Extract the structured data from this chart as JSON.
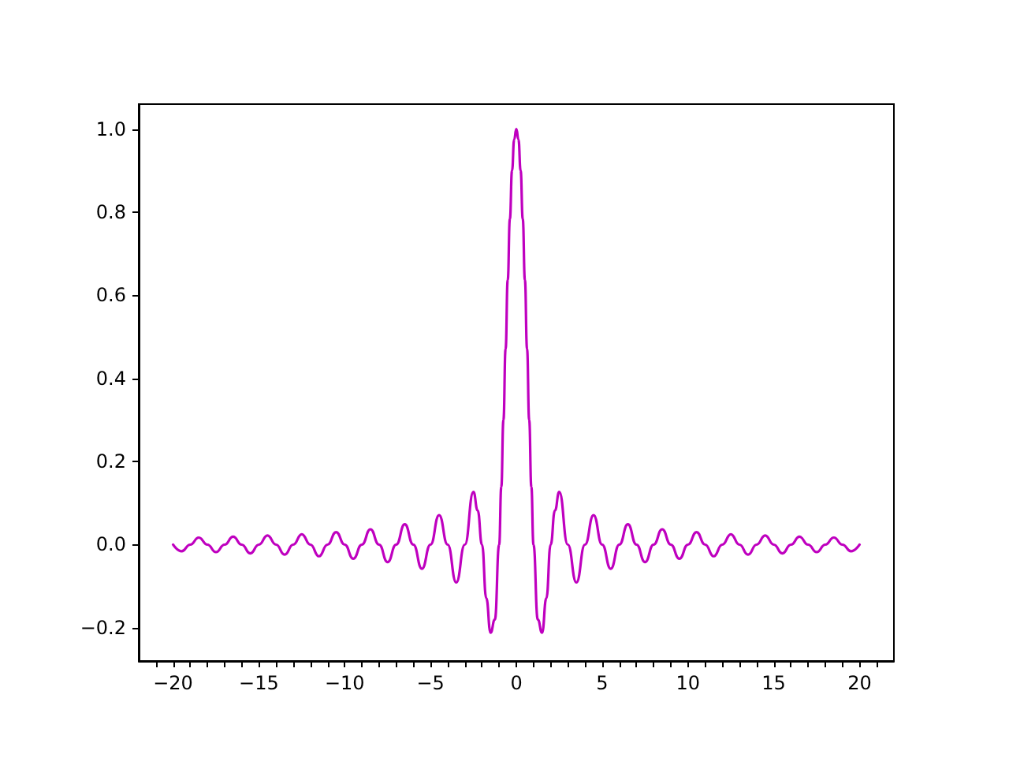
{
  "chart_data": {
    "type": "line",
    "x": [
      -20,
      -19.5,
      -19,
      -18.5,
      -18,
      -17.5,
      -17,
      -16.5,
      -16,
      -15.5,
      -15,
      -14.5,
      -14,
      -13.5,
      -13,
      -12.5,
      -12,
      -11.5,
      -11,
      -10.5,
      -10,
      -9.5,
      -9,
      -8.5,
      -8,
      -7.5,
      -7,
      -6.5,
      -6,
      -5.5,
      -5,
      -4.5,
      -4,
      -3.5,
      -3,
      -2.5,
      -2.25,
      -2,
      -1.75,
      -1.5,
      -1.25,
      -1,
      -0.875,
      -0.75,
      -0.625,
      -0.5,
      -0.375,
      -0.25,
      -0.125,
      0,
      0.125,
      0.25,
      0.375,
      0.5,
      0.625,
      0.75,
      0.875,
      1,
      1.25,
      1.5,
      1.75,
      2,
      2.25,
      2.5,
      3,
      3.5,
      4,
      4.5,
      5,
      5.5,
      6,
      6.5,
      7,
      7.5,
      8,
      8.5,
      9,
      9.5,
      10,
      10.5,
      11,
      11.5,
      12,
      12.5,
      13,
      13.5,
      14,
      14.5,
      15,
      15.5,
      16,
      16.5,
      17,
      17.5,
      18,
      18.5,
      19,
      19.5,
      20
    ],
    "series": [
      {
        "color": "#bf00bf",
        "values": [
          0,
          -0.016,
          0,
          0.017,
          0,
          -0.018,
          0,
          0.019,
          0,
          -0.021,
          0,
          0.022,
          0,
          -0.024,
          0,
          0.025,
          0,
          -0.028,
          0,
          0.03,
          0,
          -0.034,
          0,
          0.037,
          0,
          -0.042,
          0,
          0.049,
          0,
          -0.058,
          0,
          0.071,
          0,
          -0.091,
          0,
          0.127,
          0.082,
          0,
          -0.129,
          -0.212,
          -0.18,
          0,
          0.139,
          0.3,
          0.471,
          0.637,
          0.784,
          0.9,
          0.975,
          1,
          0.975,
          0.9,
          0.784,
          0.637,
          0.471,
          0.3,
          0.139,
          0,
          -0.18,
          -0.212,
          -0.129,
          0,
          0.082,
          0.127,
          0,
          -0.091,
          0,
          0.071,
          0,
          -0.058,
          0,
          0.049,
          0,
          -0.042,
          0,
          0.037,
          0,
          -0.034,
          0,
          0.03,
          0,
          -0.028,
          0,
          0.025,
          0,
          -0.024,
          0,
          0.022,
          0,
          -0.021,
          0,
          0.019,
          0,
          -0.018,
          0,
          0.017,
          0,
          -0.016,
          0
        ]
      }
    ],
    "xlim": [
      -22,
      22
    ],
    "xticks": [
      {
        "value": -20,
        "label": "−20"
      },
      {
        "value": -15,
        "label": "−15"
      },
      {
        "value": -10,
        "label": "−10"
      },
      {
        "value": -5,
        "label": "−5"
      },
      0,
      5,
      10,
      15,
      20,
      {
        "value": -21,
        "label": null
      },
      {
        "value": -19,
        "label": null
      },
      {
        "value": -18,
        "label": null
      },
      {
        "value": -17,
        "label": null
      },
      {
        "value": -16,
        "label": null
      },
      {
        "value": -14,
        "label": null
      },
      {
        "value": -13,
        "label": null
      },
      {
        "value": -12,
        "label": null
      },
      {
        "value": -11,
        "label": null
      },
      {
        "value": -9,
        "label": null
      },
      {
        "value": -8,
        "label": null
      },
      {
        "value": -7,
        "label": null
      },
      {
        "value": -6,
        "label": null
      },
      {
        "value": -4,
        "label": null
      },
      {
        "value": -3,
        "label": null
      },
      {
        "value": -2,
        "label": null
      },
      {
        "value": -1,
        "label": null
      },
      {
        "value": 1,
        "label": null
      },
      {
        "value": 2,
        "label": null
      },
      {
        "value": 3,
        "label": null
      },
      {
        "value": 4,
        "label": null
      },
      {
        "value": 6,
        "label": null
      },
      {
        "value": 7,
        "label": null
      },
      {
        "value": 8,
        "label": null
      },
      {
        "value": 9,
        "label": null
      },
      {
        "value": 11,
        "label": null
      },
      {
        "value": 12,
        "label": null
      },
      {
        "value": 13,
        "label": null
      },
      {
        "value": 14,
        "label": null
      },
      {
        "value": 16,
        "label": null
      },
      {
        "value": 17,
        "label": null
      },
      {
        "value": 18,
        "label": null
      },
      {
        "value": 19,
        "label": null
      },
      {
        "value": 21,
        "label": null
      }
    ],
    "ylim": [
      -0.28,
      1.06
    ],
    "yticks": [
      {
        "value": -0.2,
        "label": "−0.2"
      },
      {
        "value": 0,
        "label": "0.0"
      },
      {
        "value": 0.2,
        "label": "0.2"
      },
      {
        "value": 0.4,
        "label": "0.4"
      },
      {
        "value": 0.6,
        "label": "0.6"
      },
      {
        "value": 0.8,
        "label": "0.8"
      },
      {
        "value": 1,
        "label": "1.0"
      }
    ],
    "line_style": "solid"
  }
}
